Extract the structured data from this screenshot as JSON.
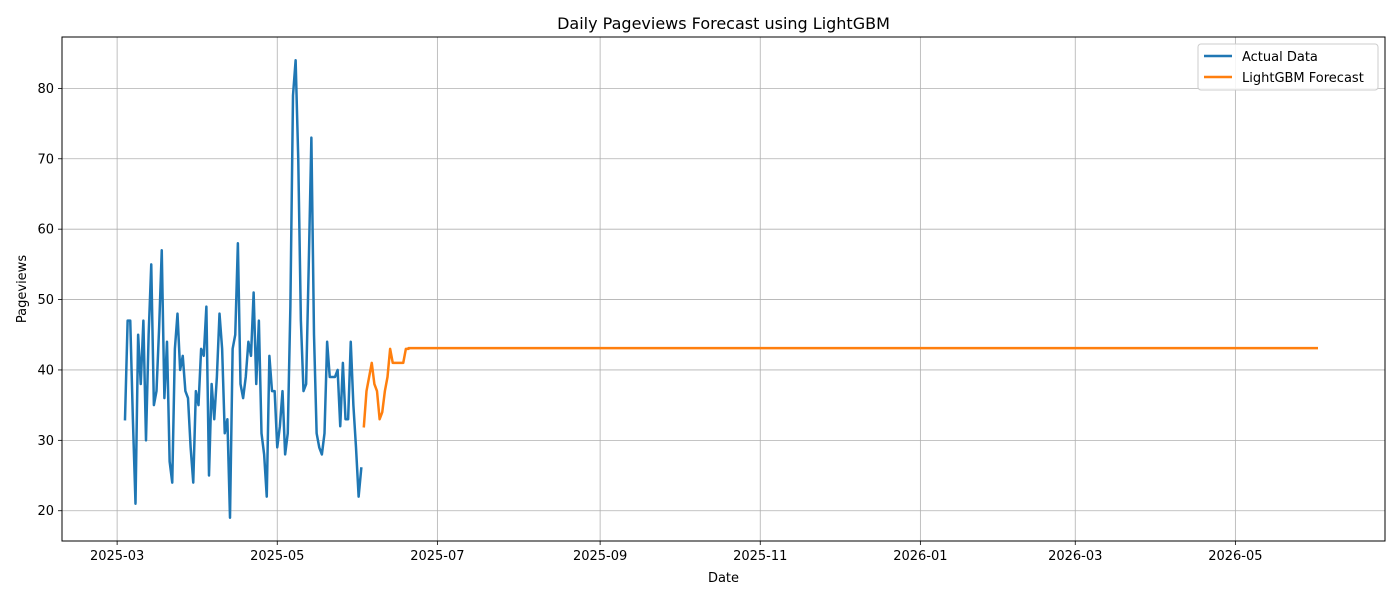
{
  "chart_data": {
    "type": "line",
    "title": "Daily Pageviews Forecast using LightGBM",
    "xlabel": "Date",
    "ylabel": "Pageviews",
    "xlim": [
      "2025-02-08",
      "2026-06-27"
    ],
    "ylim": [
      15.7,
      87.3
    ],
    "grid": true,
    "legend_position": "top-right",
    "x_ticks": [
      "2025-03",
      "2025-05",
      "2025-07",
      "2025-09",
      "2025-11",
      "2026-01",
      "2026-03",
      "2026-05"
    ],
    "y_ticks": [
      20,
      30,
      40,
      50,
      60,
      70,
      80
    ],
    "series": [
      {
        "name": "Actual Data",
        "color": "#1f77b4",
        "start_date": "2025-03-04",
        "values": [
          33,
          47,
          47,
          33,
          21,
          45,
          38,
          47,
          30,
          45,
          55,
          35,
          37,
          46,
          57,
          36,
          44,
          27,
          24,
          43,
          48,
          40,
          42,
          37,
          36,
          29,
          24,
          37,
          35,
          43,
          42,
          49,
          25,
          38,
          33,
          39,
          48,
          43,
          31,
          33,
          19,
          43,
          45,
          58,
          38,
          36,
          39,
          44,
          42,
          51,
          38,
          47,
          31,
          28,
          22,
          42,
          37,
          37,
          29,
          32,
          37,
          28,
          31,
          49,
          79,
          84,
          70,
          47,
          37,
          38,
          55,
          73,
          45,
          31,
          29,
          28,
          31,
          44,
          39,
          39,
          39,
          40,
          32,
          41,
          33,
          33,
          44,
          35,
          29,
          22,
          26
        ]
      },
      {
        "name": "LightGBM Forecast",
        "color": "#ff7f0e",
        "start_date": "2025-06-03",
        "values": [
          32,
          37,
          39,
          41,
          38,
          37,
          33,
          34,
          37,
          39,
          43,
          41,
          41,
          41,
          41,
          41,
          43,
          43
        ]
      }
    ],
    "forecast_plateau": {
      "value": 43.1,
      "from": "2025-06-20",
      "to": "2026-06-01"
    }
  }
}
